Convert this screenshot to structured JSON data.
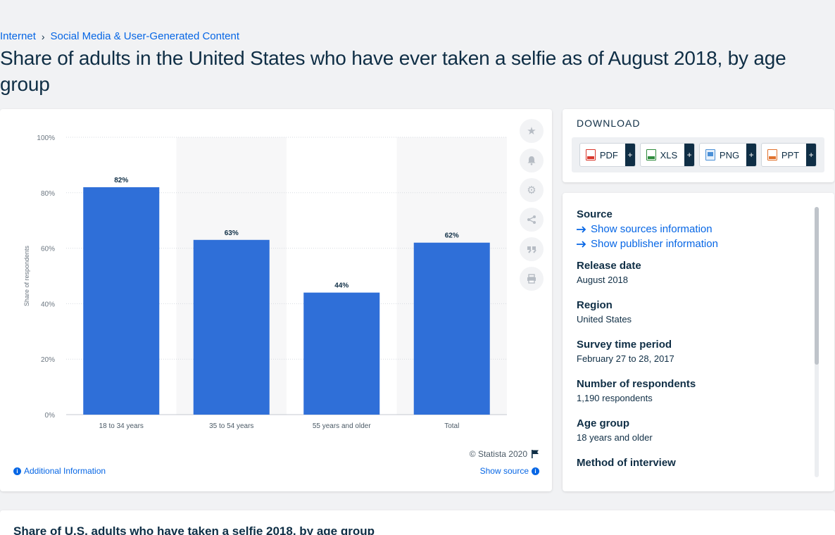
{
  "breadcrumb": {
    "items": [
      "Internet",
      "Social Media & User-Generated Content"
    ],
    "separator": "›"
  },
  "page_title": "Share of adults in the United States who have ever taken a selfie as of August 2018, by age group",
  "chart_data": {
    "type": "bar",
    "categories": [
      "18 to 34 years",
      "35 to 54 years",
      "55 years and older",
      "Total"
    ],
    "values": [
      82,
      63,
      44,
      62
    ],
    "data_labels": [
      "82%",
      "63%",
      "44%",
      "62%"
    ],
    "ylabel": "Share of respondents",
    "ylim": [
      0,
      100
    ],
    "yticks": [
      0,
      20,
      40,
      60,
      80,
      100
    ],
    "ytick_labels": [
      "0%",
      "20%",
      "40%",
      "60%",
      "80%",
      "100%"
    ],
    "grid": true,
    "bar_color": "#2f6fd8",
    "alt_band_color": "#f7f7f8"
  },
  "chart_footer": {
    "copyright": "© Statista 2020",
    "additional_info": "Additional Information",
    "show_source": "Show source"
  },
  "toolbar": {
    "icons": [
      "star-icon",
      "bell-icon",
      "gear-icon",
      "share-icon",
      "quote-icon",
      "print-icon"
    ]
  },
  "download": {
    "title": "DOWNLOAD",
    "buttons": [
      {
        "label": "PDF",
        "color": "#d9362b"
      },
      {
        "label": "XLS",
        "color": "#2e8b3d"
      },
      {
        "label": "PNG",
        "color": "#4a8fd6"
      },
      {
        "label": "PPT",
        "color": "#e0712c"
      }
    ],
    "plus": "+"
  },
  "source": {
    "heading": "Source",
    "link1": "Show sources information",
    "link2": "Show publisher information",
    "release_date_label": "Release date",
    "release_date": "August 2018",
    "region_label": "Region",
    "region": "United States",
    "survey_period_label": "Survey time period",
    "survey_period": "February 27 to 28, 2017",
    "respondents_label": "Number of respondents",
    "respondents": "1,190 respondents",
    "age_group_label": "Age group",
    "age_group": "18 years and older",
    "method_label": "Method of interview"
  },
  "bottom": {
    "title": "Share of U.S. adults who have taken a selfie 2018, by age group"
  },
  "colors": {
    "link": "#0666e5",
    "text": "#0f2e45"
  }
}
